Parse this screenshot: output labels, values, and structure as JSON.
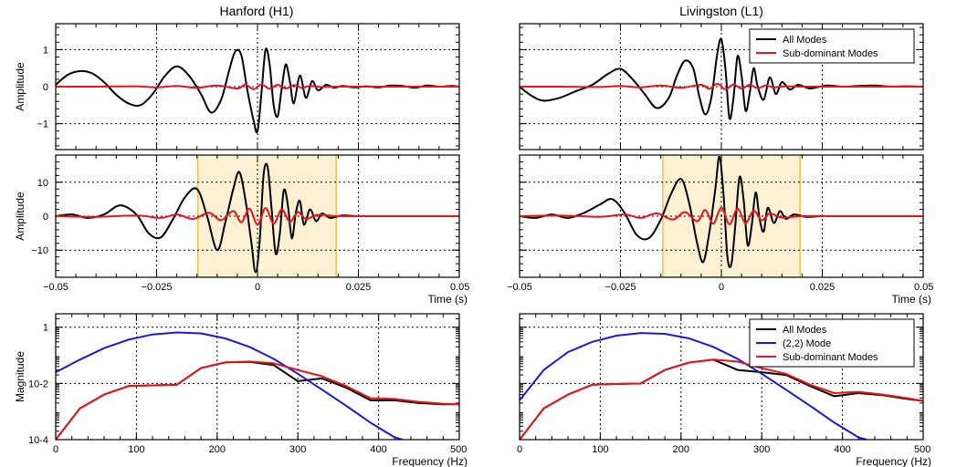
{
  "figure": {
    "columns": [
      {
        "title": "Hanford (H1)"
      },
      {
        "title": "Livingston (L1)"
      }
    ]
  },
  "colors": {
    "all_modes": "#000000",
    "sub_modes": "#e8141b",
    "mode22": "#1a1ad6",
    "shade_fill": "#fdf0d3",
    "shade_edge": "#f2c248",
    "grid": "#000000"
  },
  "chart_data": [
    {
      "id": "h1-strain",
      "type": "line",
      "column": 0,
      "row": 0,
      "title": "Hanford (H1)",
      "xlabel": "",
      "ylabel": "Amplitude",
      "xlim": [
        -0.05,
        0.05
      ],
      "ylim": [
        -1.7,
        1.7
      ],
      "yticks": [
        -1,
        0,
        1
      ],
      "yticklabels": [
        "−1",
        "0",
        "1"
      ],
      "xticks": [
        -0.05,
        -0.025,
        0,
        0.025,
        0.05
      ],
      "xticklabels": [],
      "grid": true,
      "series": [
        {
          "name": "All Modes",
          "color_key": "all_modes",
          "x": [
            -0.05,
            -0.047,
            -0.044,
            -0.041,
            -0.038,
            -0.035,
            -0.032,
            -0.029,
            -0.026,
            -0.023,
            -0.02,
            -0.017,
            -0.014,
            -0.0115,
            -0.009,
            -0.007,
            -0.0055,
            -0.004,
            -0.0025,
            -0.001,
            0.0,
            0.001,
            0.002,
            0.003,
            0.004,
            0.005,
            0.006,
            0.007,
            0.008,
            0.009,
            0.0105,
            0.012,
            0.0135,
            0.015,
            0.017,
            0.019,
            0.021,
            0.024,
            0.027,
            0.03,
            0.033,
            0.036,
            0.039,
            0.042,
            0.045,
            0.048,
            0.05
          ],
          "y": [
            0.05,
            0.32,
            0.42,
            0.36,
            0.12,
            -0.22,
            -0.45,
            -0.5,
            -0.2,
            0.28,
            0.55,
            0.3,
            -0.2,
            -0.7,
            -0.35,
            0.45,
            0.95,
            0.85,
            -0.1,
            -0.9,
            -1.2,
            -0.15,
            1.0,
            0.6,
            -0.5,
            -0.8,
            -0.05,
            0.6,
            0.15,
            -0.45,
            0.3,
            -0.3,
            0.15,
            -0.1,
            0.05,
            -0.03,
            0.02,
            -0.02,
            0.01,
            -0.02,
            0.03,
            0.02,
            -0.03,
            0.03,
            0.0,
            0.02,
            0.0
          ]
        },
        {
          "name": "Sub-dominant Modes",
          "color_key": "sub_modes",
          "x": [
            -0.05,
            -0.04,
            -0.03,
            -0.025,
            -0.02,
            -0.015,
            -0.01,
            -0.005,
            -0.003,
            -0.001,
            0.001,
            0.003,
            0.005,
            0.007,
            0.009,
            0.011,
            0.013,
            0.016,
            0.02,
            0.03,
            0.04,
            0.05
          ],
          "y": [
            0.0,
            0.0,
            0.01,
            -0.02,
            0.02,
            -0.03,
            0.03,
            -0.05,
            0.06,
            -0.07,
            0.06,
            -0.06,
            0.05,
            -0.05,
            0.04,
            -0.03,
            0.02,
            -0.01,
            0.0,
            0.0,
            0.0,
            0.0
          ]
        }
      ]
    },
    {
      "id": "l1-strain",
      "type": "line",
      "column": 1,
      "row": 0,
      "title": "Livingston (L1)",
      "xlabel": "",
      "ylabel": "",
      "xlim": [
        -0.05,
        0.05
      ],
      "ylim": [
        -1.7,
        1.7
      ],
      "yticks": [
        -1,
        0,
        1
      ],
      "yticklabels": [],
      "xticks": [
        -0.05,
        -0.025,
        0,
        0.025,
        0.05
      ],
      "xticklabels": [],
      "grid": true,
      "legend": [
        "All Modes",
        "Sub-dominant Modes"
      ],
      "series": [
        {
          "name": "All Modes",
          "color_key": "all_modes",
          "x": [
            -0.05,
            -0.047,
            -0.044,
            -0.04,
            -0.036,
            -0.032,
            -0.028,
            -0.025,
            -0.022,
            -0.019,
            -0.016,
            -0.013,
            -0.011,
            -0.009,
            -0.007,
            -0.0055,
            -0.004,
            -0.0025,
            -0.001,
            0.0,
            0.001,
            0.002,
            0.003,
            0.004,
            0.005,
            0.006,
            0.007,
            0.008,
            0.009,
            0.0105,
            0.012,
            0.0135,
            0.015,
            0.017,
            0.019,
            0.022,
            0.026,
            0.03,
            0.034,
            0.038,
            0.042,
            0.046,
            0.05
          ],
          "y": [
            0.0,
            -0.25,
            -0.38,
            -0.3,
            -0.12,
            0.05,
            0.35,
            0.48,
            0.2,
            -0.2,
            -0.58,
            -0.3,
            0.3,
            0.7,
            0.5,
            -0.25,
            -0.75,
            -0.3,
            0.9,
            1.28,
            0.5,
            -0.85,
            -0.3,
            0.82,
            0.3,
            -0.65,
            -0.2,
            0.5,
            0.0,
            -0.35,
            0.25,
            -0.2,
            0.12,
            -0.08,
            0.05,
            -0.05,
            0.03,
            0.0,
            0.02,
            0.03,
            0.0,
            0.01,
            0.0
          ]
        },
        {
          "name": "Sub-dominant Modes",
          "color_key": "sub_modes",
          "x": [
            -0.05,
            -0.04,
            -0.03,
            -0.025,
            -0.02,
            -0.015,
            -0.01,
            -0.005,
            -0.003,
            -0.001,
            0.001,
            0.003,
            0.005,
            0.007,
            0.009,
            0.011,
            0.013,
            0.016,
            0.02,
            0.03,
            0.04,
            0.05
          ],
          "y": [
            0.0,
            0.0,
            -0.01,
            0.02,
            -0.02,
            0.03,
            -0.03,
            0.05,
            -0.06,
            0.08,
            -0.07,
            0.06,
            -0.05,
            0.05,
            -0.04,
            0.03,
            -0.02,
            0.01,
            0.0,
            0.0,
            0.0,
            0.0
          ]
        }
      ]
    },
    {
      "id": "h1-whitened",
      "type": "line",
      "column": 0,
      "row": 1,
      "xlabel": "Time (s)",
      "ylabel": "Amplitude",
      "xlim": [
        -0.05,
        0.05
      ],
      "ylim": [
        -18,
        18
      ],
      "yticks": [
        -10,
        0,
        10
      ],
      "yticklabels": [
        "−10",
        "0",
        "10"
      ],
      "xticks": [
        -0.05,
        -0.025,
        0,
        0.025,
        0.05
      ],
      "xticklabels": [
        "−0.05",
        "−0.025",
        "0",
        "0.025",
        "0.05"
      ],
      "grid": true,
      "shaded_region": [
        -0.0148,
        0.0195
      ],
      "series": [
        {
          "name": "All Modes",
          "color_key": "all_modes",
          "x": [
            -0.05,
            -0.046,
            -0.042,
            -0.038,
            -0.034,
            -0.03,
            -0.027,
            -0.024,
            -0.021,
            -0.018,
            -0.015,
            -0.0125,
            -0.01,
            -0.008,
            -0.006,
            -0.0045,
            -0.003,
            -0.0015,
            -0.0005,
            0.0005,
            0.0015,
            0.0025,
            0.0035,
            0.0045,
            0.0055,
            0.0065,
            0.0075,
            0.0085,
            0.0095,
            0.0105,
            0.0115,
            0.013,
            0.0145,
            0.016,
            0.018,
            0.021,
            0.025,
            0.03,
            0.035,
            0.04,
            0.045,
            0.05
          ],
          "y": [
            0.0,
            0.5,
            -0.5,
            0.5,
            3.2,
            0.5,
            -5.0,
            -6.3,
            -1.0,
            5.5,
            8.0,
            0.0,
            -10.0,
            -2.0,
            8.0,
            13.0,
            5.0,
            -8.0,
            -16.5,
            -8.0,
            12.0,
            14.5,
            2.0,
            -11.0,
            -5.5,
            7.5,
            3.5,
            -6.5,
            1.0,
            4.5,
            -2.5,
            2.0,
            -1.5,
            0.8,
            -0.5,
            0.2,
            0.0,
            0.0,
            0.0,
            0.0,
            0.0,
            0.0
          ]
        },
        {
          "name": "Sub-dominant Modes",
          "color_key": "sub_modes",
          "x": [
            -0.05,
            -0.04,
            -0.03,
            -0.024,
            -0.02,
            -0.016,
            -0.012,
            -0.009,
            -0.006,
            -0.004,
            -0.002,
            0.0,
            0.002,
            0.004,
            0.006,
            0.008,
            0.01,
            0.012,
            0.015,
            0.02,
            0.03,
            0.04,
            0.05
          ],
          "y": [
            0.0,
            -0.2,
            0.2,
            -0.5,
            0.5,
            -0.8,
            1.0,
            -1.2,
            1.5,
            -1.8,
            2.2,
            -2.5,
            2.4,
            -2.2,
            2.0,
            -1.6,
            1.2,
            -0.8,
            0.4,
            0.0,
            0.0,
            0.0,
            0.0
          ]
        }
      ]
    },
    {
      "id": "l1-whitened",
      "type": "line",
      "column": 1,
      "row": 1,
      "xlabel": "Time (s)",
      "ylabel": "",
      "xlim": [
        -0.05,
        0.05
      ],
      "ylim": [
        -18,
        18
      ],
      "yticks": [
        -10,
        0,
        10
      ],
      "yticklabels": [],
      "xticks": [
        -0.05,
        -0.025,
        0,
        0.025,
        0.05
      ],
      "xticklabels": [
        "−0.05",
        "−0.025",
        "0",
        "0.025",
        "0.05"
      ],
      "grid": true,
      "shaded_region": [
        -0.0145,
        0.0195
      ],
      "series": [
        {
          "name": "All Modes",
          "color_key": "all_modes",
          "x": [
            -0.05,
            -0.046,
            -0.042,
            -0.038,
            -0.034,
            -0.03,
            -0.027,
            -0.024,
            -0.021,
            -0.018,
            -0.015,
            -0.0125,
            -0.01,
            -0.008,
            -0.006,
            -0.0045,
            -0.003,
            -0.0015,
            -0.0005,
            0.0005,
            0.0015,
            0.0025,
            0.0035,
            0.0045,
            0.0055,
            0.0065,
            0.0075,
            0.0085,
            0.0095,
            0.0105,
            0.0115,
            0.013,
            0.0145,
            0.016,
            0.018,
            0.021,
            0.025,
            0.03,
            0.035,
            0.04,
            0.045,
            0.05
          ],
          "y": [
            0.0,
            -0.5,
            0.5,
            -0.5,
            1.0,
            3.5,
            5.0,
            1.0,
            -5.5,
            -6.5,
            -1.0,
            6.5,
            11.0,
            4.0,
            -8.0,
            -13.5,
            -5.0,
            8.0,
            17.5,
            7.0,
            -12.0,
            -14.0,
            -2.0,
            11.5,
            5.0,
            -8.5,
            -3.0,
            7.0,
            -1.0,
            -4.5,
            2.5,
            -2.0,
            1.5,
            -0.8,
            0.5,
            -0.2,
            0.0,
            0.0,
            0.0,
            0.0,
            0.0,
            0.0
          ]
        },
        {
          "name": "Sub-dominant Modes",
          "color_key": "sub_modes",
          "x": [
            -0.05,
            -0.04,
            -0.03,
            -0.024,
            -0.02,
            -0.016,
            -0.012,
            -0.009,
            -0.006,
            -0.004,
            -0.002,
            0.0,
            0.002,
            0.004,
            0.006,
            0.008,
            0.01,
            0.012,
            0.015,
            0.02,
            0.03,
            0.04,
            0.05
          ],
          "y": [
            0.0,
            0.2,
            -0.2,
            0.5,
            -0.5,
            0.8,
            -1.0,
            1.2,
            -1.5,
            1.8,
            -2.2,
            2.5,
            -2.4,
            2.2,
            -2.0,
            1.6,
            -1.2,
            0.8,
            -0.4,
            0.0,
            0.0,
            0.0,
            0.0
          ]
        }
      ]
    },
    {
      "id": "h1-spectrum",
      "type": "line",
      "column": 0,
      "row": 2,
      "xlabel": "Frequency (Hz)",
      "ylabel": "Magnitude",
      "yscale": "log",
      "xlim": [
        0,
        500
      ],
      "ylim": [
        0.0001,
        3
      ],
      "yticks": [
        0.0001,
        0.01,
        1
      ],
      "yticklabels": [
        "10-4",
        "10-2",
        "1"
      ],
      "xticks": [
        0,
        100,
        200,
        300,
        400,
        500
      ],
      "xticklabels": [
        "0",
        "100",
        "200",
        "300",
        "400",
        "500"
      ],
      "grid": true,
      "series": [
        {
          "name": "All Modes",
          "color_key": "all_modes",
          "x": [
            0,
            30,
            60,
            90,
            120,
            150,
            180,
            210,
            240,
            270,
            300,
            330,
            360,
            390,
            420,
            450,
            480,
            500
          ],
          "y": [
            0.0001,
            0.0013,
            0.004,
            0.008,
            0.0085,
            0.009,
            0.035,
            0.056,
            0.058,
            0.045,
            0.012,
            0.015,
            0.007,
            0.0025,
            0.0025,
            0.002,
            0.0018,
            0.0018
          ]
        },
        {
          "name": "(2,2) Mode",
          "color_key": "mode22",
          "x": [
            0,
            30,
            60,
            90,
            120,
            150,
            180,
            210,
            240,
            270,
            300,
            330,
            360,
            390,
            420,
            430
          ],
          "y": [
            0.025,
            0.07,
            0.18,
            0.36,
            0.55,
            0.65,
            0.6,
            0.4,
            0.2,
            0.075,
            0.022,
            0.006,
            0.0016,
            0.0004,
            0.00012,
            0.0001
          ]
        },
        {
          "name": "Sub-dominant Modes",
          "color_key": "sub_modes",
          "x": [
            0,
            30,
            60,
            90,
            120,
            150,
            180,
            210,
            240,
            270,
            300,
            330,
            360,
            390,
            420,
            450,
            480,
            500
          ],
          "y": [
            0.0001,
            0.0013,
            0.004,
            0.008,
            0.0085,
            0.009,
            0.035,
            0.056,
            0.06,
            0.052,
            0.03,
            0.018,
            0.008,
            0.003,
            0.0028,
            0.0022,
            0.0019,
            0.0018
          ]
        }
      ]
    },
    {
      "id": "l1-spectrum",
      "type": "line",
      "column": 1,
      "row": 2,
      "xlabel": "Frequency (Hz)",
      "ylabel": "",
      "yscale": "log",
      "xlim": [
        0,
        500
      ],
      "ylim": [
        0.0001,
        3
      ],
      "yticks": [
        0.0001,
        0.01,
        1
      ],
      "yticklabels": [],
      "xticks": [
        0,
        100,
        200,
        300,
        400,
        500
      ],
      "xticklabels": [
        "0",
        "100",
        "200",
        "300",
        "400",
        "500"
      ],
      "grid": true,
      "legend": [
        "All Modes",
        "(2,2) Mode",
        "Sub-dominant Modes"
      ],
      "series": [
        {
          "name": "All Modes",
          "color_key": "all_modes",
          "x": [
            0,
            30,
            60,
            90,
            120,
            150,
            180,
            210,
            240,
            270,
            300,
            330,
            360,
            390,
            420,
            450,
            480,
            500
          ],
          "y": [
            0.0001,
            0.0013,
            0.004,
            0.009,
            0.0095,
            0.01,
            0.03,
            0.055,
            0.07,
            0.03,
            0.025,
            0.02,
            0.008,
            0.0035,
            0.0045,
            0.0038,
            0.0028,
            0.0024
          ]
        },
        {
          "name": "(2,2) Mode",
          "color_key": "mode22",
          "x": [
            0,
            30,
            60,
            90,
            120,
            150,
            180,
            210,
            240,
            270,
            300,
            330,
            360,
            390,
            420,
            430
          ],
          "y": [
            0.0025,
            0.03,
            0.13,
            0.3,
            0.5,
            0.62,
            0.58,
            0.4,
            0.2,
            0.075,
            0.022,
            0.006,
            0.0016,
            0.0004,
            0.00012,
            0.0001
          ]
        },
        {
          "name": "Sub-dominant Modes",
          "color_key": "sub_modes",
          "x": [
            0,
            30,
            60,
            90,
            120,
            150,
            180,
            210,
            240,
            270,
            300,
            330,
            360,
            390,
            420,
            450,
            480,
            500
          ],
          "y": [
            0.0001,
            0.0013,
            0.004,
            0.009,
            0.0095,
            0.01,
            0.03,
            0.055,
            0.07,
            0.06,
            0.035,
            0.022,
            0.009,
            0.0045,
            0.005,
            0.004,
            0.003,
            0.0024
          ]
        }
      ]
    }
  ]
}
